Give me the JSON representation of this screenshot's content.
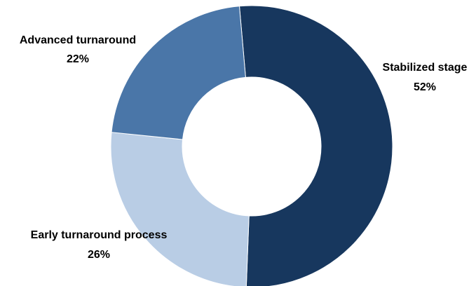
{
  "chart_data": {
    "type": "pie",
    "variant": "donut",
    "title": "",
    "categories": [
      "Stabilized stage",
      "Early turnaround process",
      "Advanced turnaround"
    ],
    "values": [
      52,
      26,
      22
    ],
    "value_labels": [
      "52%",
      "26%",
      "22%"
    ],
    "unit": "%",
    "colors": [
      "#17375e",
      "#b9cde5",
      "#4a76a8"
    ],
    "legend": "none",
    "labels_position": "outside"
  }
}
